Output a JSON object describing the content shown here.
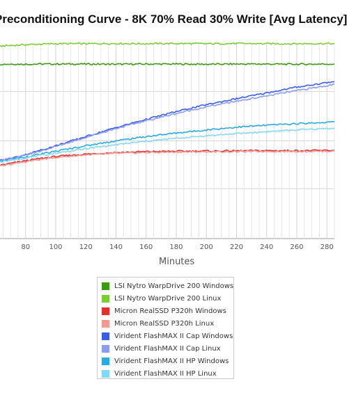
{
  "chart_data": {
    "type": "line",
    "title": "Preconditioning Curve - 8K 70% Read 30% Write [Avg Latency]",
    "xlabel": "Minutes",
    "ylabel": "",
    "x_ticks": [
      80,
      100,
      120,
      140,
      160,
      180,
      200,
      220,
      240,
      260,
      280
    ],
    "xlim": [
      63,
      285
    ],
    "ylim": [
      0,
      1
    ],
    "grid": true,
    "legend_position": "bottom",
    "x": [
      63,
      70,
      80,
      90,
      100,
      120,
      140,
      160,
      180,
      200,
      220,
      240,
      260,
      280,
      285
    ],
    "series": [
      {
        "name": "LSI Nytro WarpDrive 200 Windows",
        "color": "#3a9a10",
        "values": [
          0.892,
          0.893,
          0.892,
          0.893,
          0.893,
          0.893,
          0.892,
          0.893,
          0.893,
          0.892,
          0.893,
          0.893,
          0.892,
          0.893,
          0.893
        ]
      },
      {
        "name": "LSI Nytro WarpDrive 200 Linux",
        "color": "#7ccc33",
        "values": [
          0.985,
          0.988,
          0.992,
          0.995,
          0.997,
          0.997,
          0.998,
          0.997,
          0.998,
          0.997,
          0.998,
          0.997,
          0.997,
          0.998,
          0.997
        ]
      },
      {
        "name": "Micron RealSSD P320h Windows",
        "color": "#e03030",
        "values": [
          0.375,
          0.385,
          0.398,
          0.41,
          0.42,
          0.432,
          0.44,
          0.445,
          0.447,
          0.448,
          0.449,
          0.45,
          0.45,
          0.451,
          0.451
        ]
      },
      {
        "name": "Micron RealSSD P320h Linux",
        "color": "#f29a92",
        "values": [
          0.37,
          0.38,
          0.393,
          0.405,
          0.415,
          0.428,
          0.436,
          0.44,
          0.443,
          0.444,
          0.445,
          0.446,
          0.446,
          0.447,
          0.447
        ]
      },
      {
        "name": "Virident FlashMAX II Cap Windows",
        "color": "#3b5ee8",
        "values": [
          0.4,
          0.41,
          0.43,
          0.452,
          0.475,
          0.522,
          0.568,
          0.61,
          0.65,
          0.685,
          0.716,
          0.745,
          0.775,
          0.798,
          0.803
        ]
      },
      {
        "name": "Virident FlashMAX II Cap Linux",
        "color": "#8c9cf2",
        "values": [
          0.398,
          0.408,
          0.427,
          0.448,
          0.471,
          0.518,
          0.563,
          0.603,
          0.64,
          0.674,
          0.703,
          0.73,
          0.757,
          0.782,
          0.79
        ]
      },
      {
        "name": "Virident FlashMAX II HP Windows",
        "color": "#29abe0",
        "values": [
          0.395,
          0.403,
          0.418,
          0.432,
          0.447,
          0.475,
          0.5,
          0.522,
          0.54,
          0.556,
          0.57,
          0.58,
          0.588,
          0.595,
          0.597
        ]
      },
      {
        "name": "Virident FlashMAX II HP Linux",
        "color": "#86d8f8",
        "values": [
          0.393,
          0.4,
          0.413,
          0.425,
          0.437,
          0.46,
          0.48,
          0.498,
          0.513,
          0.526,
          0.537,
          0.547,
          0.556,
          0.563,
          0.566
        ]
      }
    ]
  }
}
